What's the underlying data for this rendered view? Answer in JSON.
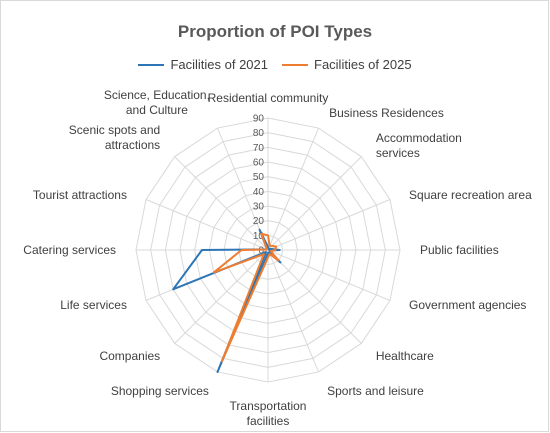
{
  "chart_data": {
    "type": "radar",
    "title": "Proportion of POI Types",
    "categories": [
      "Residential community",
      "Business Residences",
      "Accommodation services",
      "Square recreation area",
      "Public facilities",
      "Government agencies",
      "Healthcare",
      "Sports and leisure",
      "Transportation facilities",
      "Shopping services",
      "Companies",
      "Life services",
      "Catering services",
      "Tourist attractions",
      "Scenic spots and attractions",
      "Science, Education, and Culture"
    ],
    "series": [
      {
        "name": "Facilities of 2021",
        "color": "#2e75b6",
        "values": [
          2,
          1,
          1,
          2,
          8,
          1,
          12,
          2,
          2,
          90,
          2,
          70,
          45,
          1,
          1,
          15
        ]
      },
      {
        "name": "Facilities of 2025",
        "color": "#ed7d31",
        "values": [
          10,
          3,
          4,
          6,
          5,
          2,
          10,
          3,
          5,
          82,
          4,
          40,
          18,
          1,
          1,
          12
        ]
      }
    ],
    "ticks": [
      0,
      10,
      20,
      30,
      40,
      50,
      60,
      70,
      80,
      90
    ],
    "rlim": [
      0,
      90
    ],
    "legend_position": "top",
    "grid": true
  }
}
